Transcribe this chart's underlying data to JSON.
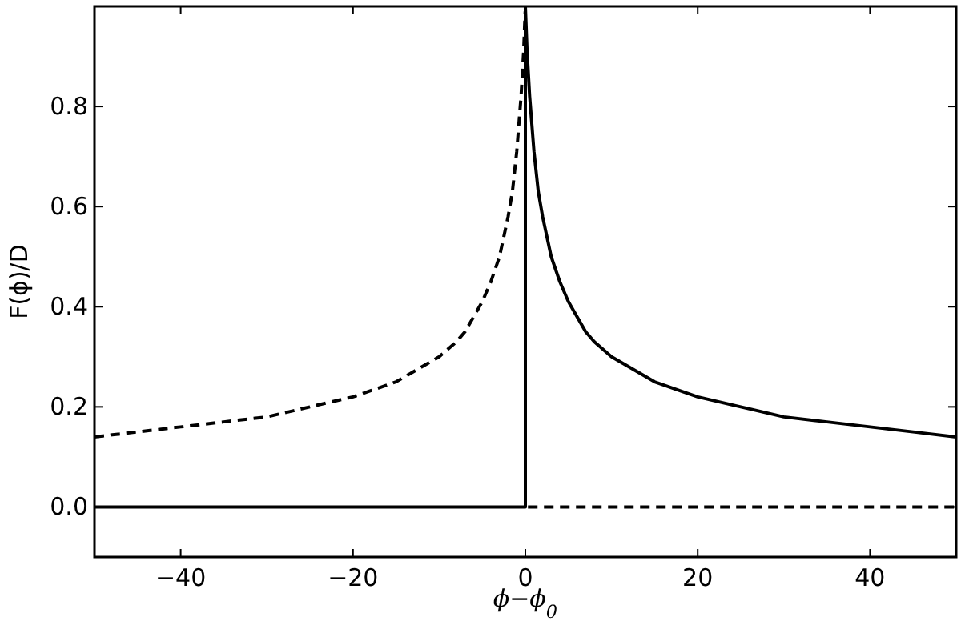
{
  "chart_data": {
    "type": "line",
    "xlabel": "ϕ−ϕ$_{0}$",
    "ylabel": "F(ϕ)/D",
    "xlim": [
      -50,
      50
    ],
    "ylim": [
      -0.1,
      1.0
    ],
    "xticks": [
      {
        "value": -40,
        "label": "−40"
      },
      {
        "value": -20,
        "label": "−20"
      },
      0,
      20,
      40
    ],
    "yticks": [
      {
        "value": 0,
        "label": "0.0"
      },
      {
        "value": 0.2,
        "label": "0.2"
      },
      {
        "value": 0.4,
        "label": "0.4"
      },
      {
        "value": 0.6,
        "label": "0.6"
      },
      {
        "value": 0.8,
        "label": "0.8"
      }
    ],
    "grid": false,
    "marker": "none",
    "series": [
      {
        "color": "#000000",
        "line_style": "solid",
        "x": [
          -50,
          0,
          0,
          0.2,
          0.5,
          1,
          1.5,
          2,
          3,
          4,
          5,
          6,
          7,
          8,
          10,
          12,
          15,
          20,
          25,
          30,
          35,
          40,
          45,
          50
        ],
        "values": [
          0,
          0,
          1.0,
          0.91,
          0.82,
          0.71,
          0.63,
          0.58,
          0.5,
          0.45,
          0.41,
          0.38,
          0.35,
          0.33,
          0.3,
          0.28,
          0.25,
          0.22,
          0.2,
          0.18,
          0.17,
          0.16,
          0.15,
          0.14
        ]
      },
      {
        "color": "#000000",
        "line_style": "dashed",
        "x": [
          -50,
          -45,
          -40,
          -35,
          -30,
          -25,
          -20,
          -15,
          -12,
          -10,
          -8,
          -7,
          -6,
          -5,
          -4,
          -3,
          -2,
          -1.5,
          -1,
          -0.5,
          -0.2,
          -0.02
        ],
        "values": [
          0.14,
          0.15,
          0.16,
          0.17,
          0.18,
          0.2,
          0.22,
          0.25,
          0.28,
          0.3,
          0.33,
          0.35,
          0.38,
          0.41,
          0.45,
          0.5,
          0.58,
          0.63,
          0.71,
          0.82,
          0.91,
          0.99
        ]
      },
      {
        "color": "#000000",
        "line_style": "dashed",
        "x": [
          0.3,
          50
        ],
        "values": [
          0,
          0
        ]
      }
    ]
  }
}
